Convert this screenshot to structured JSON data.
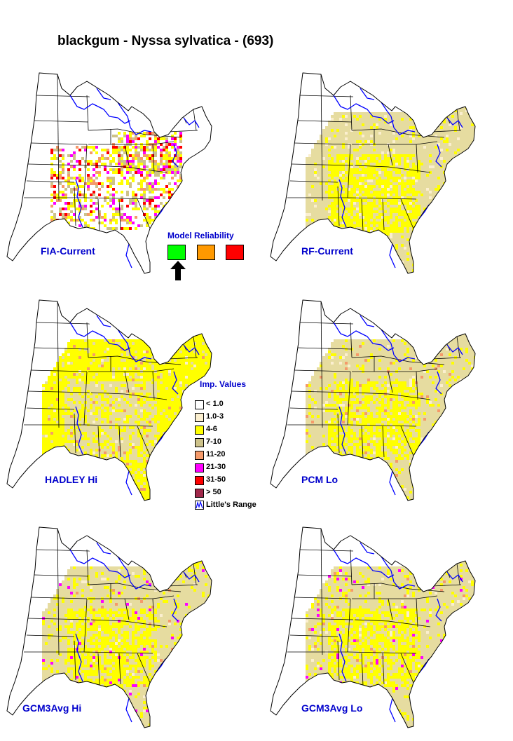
{
  "title": "blackgum - Nyssa sylvatica - (693)",
  "panels": [
    {
      "label": "FIA-Current",
      "style": "fia"
    },
    {
      "label": "RF-Current",
      "style": "rf"
    },
    {
      "label": "HADLEY Hi",
      "style": "hadley"
    },
    {
      "label": "PCM Lo",
      "style": "pcm"
    },
    {
      "label": "GCM3Avg Hi",
      "style": "gcmhi"
    },
    {
      "label": "GCM3Avg Lo",
      "style": "gcmlo"
    }
  ],
  "model_reliability": {
    "title": "Model Reliability",
    "levels": [
      {
        "color": "#00ff00",
        "selected": true
      },
      {
        "color": "#ff9900",
        "selected": false
      },
      {
        "color": "#ff0000",
        "selected": false
      }
    ]
  },
  "legend": {
    "title": "Imp. Values",
    "items": [
      {
        "label": "< 1.0",
        "color": "#ffffff"
      },
      {
        "label": "1.0-3",
        "color": "#fbefcf"
      },
      {
        "label": "4-6",
        "color": "#ffff00"
      },
      {
        "label": "7-10",
        "color": "#cdc28a"
      },
      {
        "label": "11-20",
        "color": "#f59a6a"
      },
      {
        "label": "21-30",
        "color": "#ff00ff"
      },
      {
        "label": "31-50",
        "color": "#ff0000"
      },
      {
        "label": "> 50",
        "color": "#a0284a"
      },
      {
        "label": "Little's Range",
        "color": "range"
      }
    ]
  },
  "colors": {
    "state_lines": "#000000",
    "coast_water": "#0000ff",
    "label_blue": "#0000cc"
  }
}
